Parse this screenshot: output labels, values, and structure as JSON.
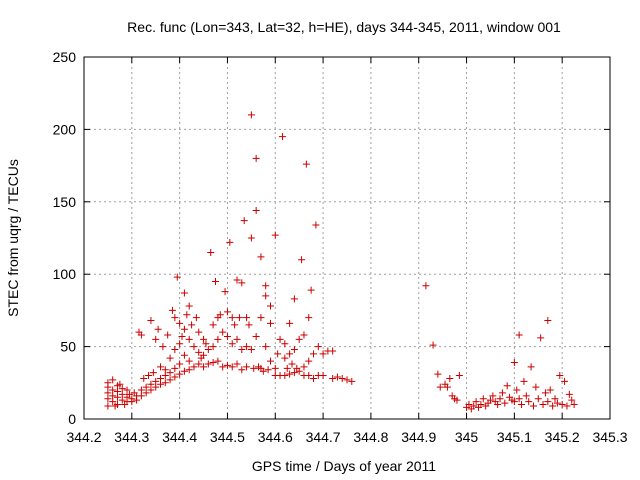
{
  "chart_data": {
    "type": "scatter",
    "title": "Rec. func (Lon=343, Lat=32, h=HE), days 344-345, 2011, window 001",
    "xlabel": "GPS time / Days of year 2011",
    "ylabel": "STEC from uqrg / TECUs",
    "xlim": [
      344.2,
      345.3
    ],
    "ylim": [
      0,
      250
    ],
    "x_ticks": [
      344.2,
      344.3,
      344.4,
      344.5,
      344.6,
      344.7,
      344.8,
      344.9,
      345.0,
      345.1,
      345.2,
      345.3
    ],
    "x_tick_labels": [
      "344.2",
      "344.3",
      "344.4",
      "344.5",
      "344.6",
      "344.7",
      "344.8",
      "344.9",
      "345",
      "345.1",
      "345.2",
      "345.3"
    ],
    "y_ticks": [
      0,
      50,
      100,
      150,
      200,
      250
    ],
    "y_tick_labels": [
      "0",
      "50",
      "100",
      "150",
      "200",
      "250"
    ],
    "grid": true,
    "marker": "plus",
    "color": "#cc0000",
    "series": [
      {
        "points": [
          [
            344.25,
            25
          ],
          [
            344.25,
            22
          ],
          [
            344.25,
            18
          ],
          [
            344.25,
            14
          ],
          [
            344.25,
            9
          ],
          [
            344.26,
            27
          ],
          [
            344.26,
            20
          ],
          [
            344.26,
            16
          ],
          [
            344.26,
            12
          ],
          [
            344.265,
            9
          ],
          [
            344.27,
            23
          ],
          [
            344.27,
            19
          ],
          [
            344.27,
            15
          ],
          [
            344.27,
            10
          ],
          [
            344.275,
            24
          ],
          [
            344.28,
            21
          ],
          [
            344.28,
            17
          ],
          [
            344.28,
            13
          ],
          [
            344.285,
            10
          ],
          [
            344.29,
            20
          ],
          [
            344.29,
            15
          ],
          [
            344.29,
            12
          ],
          [
            344.295,
            17
          ],
          [
            344.3,
            14
          ],
          [
            344.3,
            12
          ],
          [
            344.305,
            18
          ],
          [
            344.31,
            16
          ],
          [
            344.31,
            13
          ],
          [
            344.315,
            60
          ],
          [
            344.32,
            58
          ],
          [
            344.32,
            20
          ],
          [
            344.32,
            16
          ],
          [
            344.325,
            28
          ],
          [
            344.33,
            22
          ],
          [
            344.33,
            18
          ],
          [
            344.335,
            30
          ],
          [
            344.34,
            68
          ],
          [
            344.34,
            24
          ],
          [
            344.34,
            20
          ],
          [
            344.345,
            32
          ],
          [
            344.35,
            55
          ],
          [
            344.35,
            26
          ],
          [
            344.35,
            22
          ],
          [
            344.355,
            62
          ],
          [
            344.36,
            36
          ],
          [
            344.36,
            28
          ],
          [
            344.36,
            24
          ],
          [
            344.365,
            50
          ],
          [
            344.37,
            34
          ],
          [
            344.37,
            30
          ],
          [
            344.37,
            25
          ],
          [
            344.375,
            58
          ],
          [
            344.38,
            42
          ],
          [
            344.38,
            32
          ],
          [
            344.38,
            27
          ],
          [
            344.385,
            75
          ],
          [
            344.39,
            70
          ],
          [
            344.39,
            48
          ],
          [
            344.39,
            35
          ],
          [
            344.39,
            29
          ],
          [
            344.395,
            98
          ],
          [
            344.4,
            66
          ],
          [
            344.4,
            52
          ],
          [
            344.4,
            38
          ],
          [
            344.4,
            31
          ],
          [
            344.405,
            57
          ],
          [
            344.41,
            87
          ],
          [
            344.41,
            62
          ],
          [
            344.41,
            44
          ],
          [
            344.41,
            33
          ],
          [
            344.415,
            72
          ],
          [
            344.42,
            78
          ],
          [
            344.42,
            55
          ],
          [
            344.42,
            40
          ],
          [
            344.42,
            34
          ],
          [
            344.425,
            65
          ],
          [
            344.43,
            50
          ],
          [
            344.43,
            36
          ],
          [
            344.435,
            70
          ],
          [
            344.44,
            60
          ],
          [
            344.44,
            46
          ],
          [
            344.44,
            38
          ],
          [
            344.445,
            42
          ],
          [
            344.45,
            55
          ],
          [
            344.45,
            44
          ],
          [
            344.45,
            36
          ],
          [
            344.455,
            52
          ],
          [
            344.46,
            48
          ],
          [
            344.46,
            38
          ],
          [
            344.465,
            115
          ],
          [
            344.47,
            65
          ],
          [
            344.47,
            50
          ],
          [
            344.47,
            39
          ],
          [
            344.475,
            95
          ],
          [
            344.48,
            70
          ],
          [
            344.48,
            55
          ],
          [
            344.48,
            40
          ],
          [
            344.485,
            72
          ],
          [
            344.49,
            60
          ],
          [
            344.49,
            36
          ],
          [
            344.495,
            88
          ],
          [
            344.5,
            74
          ],
          [
            344.5,
            57
          ],
          [
            344.5,
            37
          ],
          [
            344.505,
            122
          ],
          [
            344.51,
            70
          ],
          [
            344.51,
            52
          ],
          [
            344.51,
            36
          ],
          [
            344.515,
            65
          ],
          [
            344.52,
            96
          ],
          [
            344.52,
            55
          ],
          [
            344.52,
            38
          ],
          [
            344.525,
            70
          ],
          [
            344.53,
            94
          ],
          [
            344.53,
            48
          ],
          [
            344.53,
            34
          ],
          [
            344.535,
            137
          ],
          [
            344.54,
            70
          ],
          [
            344.54,
            50
          ],
          [
            344.54,
            36
          ],
          [
            344.545,
            65
          ],
          [
            344.55,
            210
          ],
          [
            344.55,
            125
          ],
          [
            344.55,
            48
          ],
          [
            344.555,
            35
          ],
          [
            344.56,
            180
          ],
          [
            344.56,
            144
          ],
          [
            344.56,
            57
          ],
          [
            344.565,
            36
          ],
          [
            344.57,
            112
          ],
          [
            344.57,
            70
          ],
          [
            344.57,
            35
          ],
          [
            344.575,
            33
          ],
          [
            344.58,
            92
          ],
          [
            344.58,
            85
          ],
          [
            344.58,
            50
          ],
          [
            344.585,
            34
          ],
          [
            344.59,
            78
          ],
          [
            344.59,
            66
          ],
          [
            344.59,
            40
          ],
          [
            344.6,
            127
          ],
          [
            344.6,
            35
          ],
          [
            344.6,
            30
          ],
          [
            344.605,
            45
          ],
          [
            344.61,
            55
          ],
          [
            344.61,
            30
          ],
          [
            344.615,
            195
          ],
          [
            344.62,
            52
          ],
          [
            344.62,
            42
          ],
          [
            344.62,
            30
          ],
          [
            344.625,
            35
          ],
          [
            344.63,
            66
          ],
          [
            344.63,
            45
          ],
          [
            344.63,
            31
          ],
          [
            344.635,
            38
          ],
          [
            344.64,
            83
          ],
          [
            344.64,
            48
          ],
          [
            344.64,
            32
          ],
          [
            344.645,
            35
          ],
          [
            344.65,
            55
          ],
          [
            344.65,
            33
          ],
          [
            344.655,
            110
          ],
          [
            344.66,
            58
          ],
          [
            344.66,
            36
          ],
          [
            344.66,
            30
          ],
          [
            344.665,
            176
          ],
          [
            344.67,
            70
          ],
          [
            344.67,
            40
          ],
          [
            344.67,
            30
          ],
          [
            344.675,
            89
          ],
          [
            344.68,
            45
          ],
          [
            344.68,
            28
          ],
          [
            344.685,
            134
          ],
          [
            344.69,
            50
          ],
          [
            344.69,
            30
          ],
          [
            344.7,
            45
          ],
          [
            344.7,
            30
          ],
          [
            344.71,
            47
          ],
          [
            344.72,
            47
          ],
          [
            344.72,
            28
          ],
          [
            344.73,
            29
          ],
          [
            344.74,
            28
          ],
          [
            344.75,
            27
          ],
          [
            344.76,
            26
          ],
          [
            344.915,
            92
          ],
          [
            344.93,
            51
          ],
          [
            344.94,
            31
          ],
          [
            344.945,
            22
          ],
          [
            344.955,
            24
          ],
          [
            344.96,
            22
          ],
          [
            344.965,
            28
          ],
          [
            344.97,
            16
          ],
          [
            344.975,
            14
          ],
          [
            344.98,
            13
          ],
          [
            344.985,
            30
          ],
          [
            345.0,
            8
          ],
          [
            345.005,
            10
          ],
          [
            345.01,
            7
          ],
          [
            345.015,
            9
          ],
          [
            345.02,
            12
          ],
          [
            345.025,
            8
          ],
          [
            345.03,
            10
          ],
          [
            345.035,
            14
          ],
          [
            345.04,
            9
          ],
          [
            345.045,
            11
          ],
          [
            345.05,
            13
          ],
          [
            345.055,
            16
          ],
          [
            345.06,
            12
          ],
          [
            345.065,
            10
          ],
          [
            345.07,
            14
          ],
          [
            345.075,
            18
          ],
          [
            345.08,
            11
          ],
          [
            345.085,
            23
          ],
          [
            345.09,
            15
          ],
          [
            345.095,
            13
          ],
          [
            345.1,
            39
          ],
          [
            345.1,
            12
          ],
          [
            345.105,
            20
          ],
          [
            345.11,
            58
          ],
          [
            345.11,
            14
          ],
          [
            345.115,
            10
          ],
          [
            345.12,
            26
          ],
          [
            345.125,
            16
          ],
          [
            345.13,
            12
          ],
          [
            345.135,
            36
          ],
          [
            345.14,
            9
          ],
          [
            345.145,
            22
          ],
          [
            345.15,
            14
          ],
          [
            345.155,
            56
          ],
          [
            345.16,
            10
          ],
          [
            345.165,
            18
          ],
          [
            345.17,
            68
          ],
          [
            345.17,
            12
          ],
          [
            345.175,
            20
          ],
          [
            345.18,
            9
          ],
          [
            345.185,
            14
          ],
          [
            345.19,
            11
          ],
          [
            345.195,
            30
          ],
          [
            345.2,
            10
          ],
          [
            345.205,
            26
          ],
          [
            345.21,
            9
          ],
          [
            345.215,
            17
          ],
          [
            345.22,
            13
          ],
          [
            345.225,
            10
          ]
        ]
      }
    ]
  }
}
